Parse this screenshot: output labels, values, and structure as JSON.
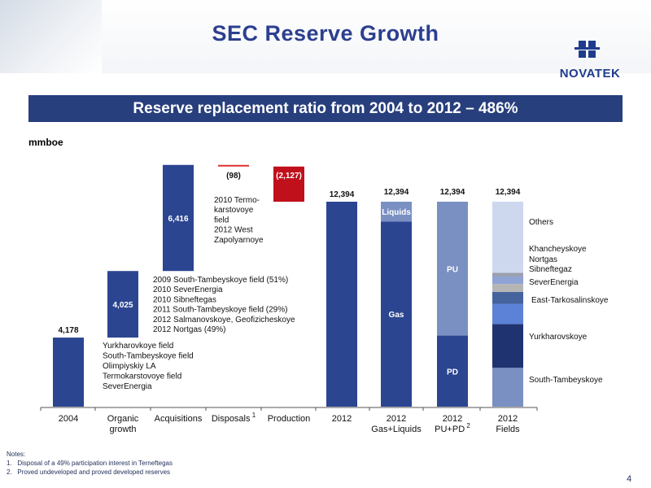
{
  "title": "SEC Reserve Growth",
  "logo": {
    "text": "NOVATEK"
  },
  "banner": "Reserve replacement ratio from 2004 to 2012 – 486%",
  "unit": "mmboe",
  "page_number": "4",
  "notes": {
    "heading": "Notes:",
    "items": [
      "Disposal of a 49% participation interest in Terneftegas",
      "Proved undeveloped and proved developed reserves"
    ]
  },
  "annotations": {
    "organic": [
      "Yurkharovkoye field",
      "South-Tambeyskoye field",
      "Olimpiyskiy LA",
      "Termokarstovoye field",
      "SeverEnergia"
    ],
    "acquisitions": [
      "2009 South-Tambeyskoye field (51%)",
      "2010 SeverEnergia",
      "2010 Sibneftegas",
      "2011 South-Tambeyskoye field (29%)",
      "2012 Salmanovskoye, Geofizicheskoye",
      "2012 Nortgas (49%)"
    ],
    "disposals": [
      "2010 Termo-",
      "karstovoye",
      "field",
      "2012 West",
      "Zapolyarnoye"
    ]
  },
  "chart_data": {
    "type": "bar",
    "subtype": "waterfall",
    "categories": [
      "2004",
      "Organic growth",
      "Acquisitions",
      "Disposals",
      "Production",
      "2012",
      "2012 Gas+Liquids",
      "2012 PU+PD",
      "2012 Fields"
    ],
    "category_labels": [
      {
        "lines": [
          "2004"
        ]
      },
      {
        "lines": [
          "Organic",
          "growth"
        ]
      },
      {
        "lines": [
          "Acquisitions"
        ]
      },
      {
        "lines": [
          "Disposals"
        ],
        "sup": "1"
      },
      {
        "lines": [
          "Production"
        ]
      },
      {
        "lines": [
          "2012"
        ]
      },
      {
        "lines": [
          "2012",
          "Gas+Liquids"
        ]
      },
      {
        "lines": [
          "2012",
          "PU+PD"
        ],
        "sup": "2"
      },
      {
        "lines": [
          "2012",
          "Fields"
        ]
      }
    ],
    "waterfall": [
      {
        "category": "2004",
        "value": 4178,
        "label": "4,178",
        "kind": "total",
        "color": "#2b4590"
      },
      {
        "category": "Organic growth",
        "value": 4025,
        "label": "4,025",
        "kind": "increase",
        "color": "#2b4590"
      },
      {
        "category": "Acquisitions",
        "value": 6416,
        "label": "6,416",
        "kind": "increase",
        "color": "#2b4590"
      },
      {
        "category": "Disposals",
        "value": -98,
        "label": "(98)",
        "kind": "decrease",
        "color": "#e03030"
      },
      {
        "category": "Production",
        "value": -2127,
        "label": "(2,127)",
        "kind": "decrease",
        "color": "#c0101c"
      },
      {
        "category": "2012",
        "value": 12394,
        "label": "12,394",
        "kind": "total",
        "color": "#2b4590"
      }
    ],
    "stacked": [
      {
        "category": "2012 Gas+Liquids",
        "total_label": "12,394",
        "segments": [
          {
            "name": "Gas",
            "value": 11200,
            "color": "#2b4590",
            "label_inside": true
          },
          {
            "name": "Liquids",
            "value": 1194,
            "color": "#7a90c2",
            "label_inside": true
          }
        ]
      },
      {
        "category": "2012 PU+PD",
        "total_label": "12,394",
        "segments": [
          {
            "name": "PD",
            "value": 4300,
            "color": "#2b4590",
            "label_inside": true
          },
          {
            "name": "PU",
            "value": 8094,
            "color": "#7a90c2",
            "label_inside": true
          }
        ]
      },
      {
        "category": "2012 Fields",
        "total_label": "12,394",
        "segments": [
          {
            "name": "South-Tambeyskoye",
            "value": 2350,
            "color": "#7a90c2"
          },
          {
            "name": "Yurkharovskoye",
            "value": 2650,
            "color": "#1f3370"
          },
          {
            "name": "East-Tarkosalinskoye",
            "value": 1220,
            "color": "#5b82d6"
          },
          {
            "name": "SeverEnergia",
            "value": 720,
            "color": "#45649e"
          },
          {
            "name": "Sibneftegaz",
            "value": 480,
            "color": "#b5b5b5"
          },
          {
            "name": "Nortgas",
            "value": 450,
            "color": "#8fa4d4"
          },
          {
            "name": "Khancheyskoye",
            "value": 230,
            "color": "#9aa0ae"
          },
          {
            "name": "Others",
            "value": 4294,
            "color": "#cdd8ef"
          }
        ]
      }
    ],
    "ylim": [
      0,
      12394
    ],
    "grid": false,
    "legend": "right"
  }
}
